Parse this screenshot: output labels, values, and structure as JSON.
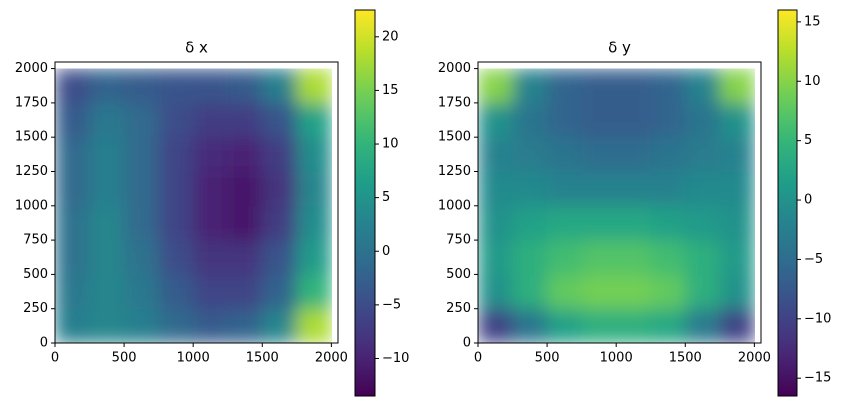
{
  "chart_data": [
    {
      "type": "heatmap",
      "title": "δ x",
      "colormap": "viridis",
      "x": [
        125,
        375,
        625,
        875,
        1125,
        1375,
        1625,
        1875
      ],
      "y": [
        125,
        375,
        625,
        875,
        1125,
        1375,
        1625,
        1875
      ],
      "z": [
        [
          2,
          3,
          2,
          -1,
          -3,
          -2,
          3,
          18
        ],
        [
          1,
          3,
          1,
          -3,
          -6,
          -6,
          -2,
          10
        ],
        [
          0,
          3,
          0,
          -5,
          -8,
          -8,
          -4,
          6
        ],
        [
          0,
          3,
          -1,
          -6,
          -10,
          -11,
          -7,
          4
        ],
        [
          -1,
          2,
          -1,
          -6,
          -10,
          -11,
          -8,
          3
        ],
        [
          -1,
          2,
          -1,
          -6,
          -9,
          -10,
          -7,
          4
        ],
        [
          -3,
          1,
          -1,
          -5,
          -7,
          -7,
          -4,
          7
        ],
        [
          -5,
          -2,
          -3,
          -4,
          -4,
          -3,
          2,
          18
        ]
      ],
      "xlim": [
        0,
        2048
      ],
      "ylim": [
        0,
        2048
      ],
      "xticks": [
        0,
        500,
        1000,
        1500,
        2000
      ],
      "yticks": [
        0,
        250,
        500,
        750,
        1000,
        1250,
        1500,
        1750,
        2000
      ],
      "clim": [
        -13.5,
        22.5
      ],
      "cticks": [
        {
          "value": -10,
          "label": "−10"
        },
        {
          "value": -5,
          "label": "−5"
        },
        0,
        5,
        10,
        15,
        20
      ]
    },
    {
      "type": "heatmap",
      "title": "δ y",
      "colormap": "viridis",
      "x": [
        125,
        375,
        625,
        875,
        1125,
        1375,
        1625,
        1875
      ],
      "y": [
        125,
        375,
        625,
        875,
        1125,
        1375,
        1625,
        1875
      ],
      "z": [
        [
          -10,
          -4,
          2,
          4,
          4,
          3,
          -3,
          -10
        ],
        [
          0,
          4,
          8,
          9,
          9,
          8,
          4,
          0
        ],
        [
          1,
          4,
          6,
          7,
          7,
          6,
          4,
          1
        ],
        [
          0,
          2,
          3,
          3,
          3,
          2,
          1,
          0
        ],
        [
          -1,
          -1,
          -2,
          -2,
          -2,
          -2,
          -1,
          -1
        ],
        [
          -2,
          -3,
          -4,
          -5,
          -5,
          -4,
          -3,
          -2
        ],
        [
          0,
          -4,
          -6,
          -7,
          -7,
          -6,
          -4,
          0
        ],
        [
          10,
          -2,
          -6,
          -7,
          -7,
          -6,
          -2,
          10
        ]
      ],
      "xlim": [
        0,
        2048
      ],
      "ylim": [
        0,
        2048
      ],
      "xticks": [
        0,
        500,
        1000,
        1500,
        2000
      ],
      "yticks": [
        0,
        250,
        500,
        750,
        1000,
        1250,
        1500,
        1750,
        2000
      ],
      "clim": [
        -16.5,
        16
      ],
      "cticks": [
        {
          "value": -15,
          "label": "−15"
        },
        {
          "value": -10,
          "label": "−10"
        },
        {
          "value": -5,
          "label": "−5"
        },
        0,
        5,
        10,
        15
      ]
    }
  ]
}
